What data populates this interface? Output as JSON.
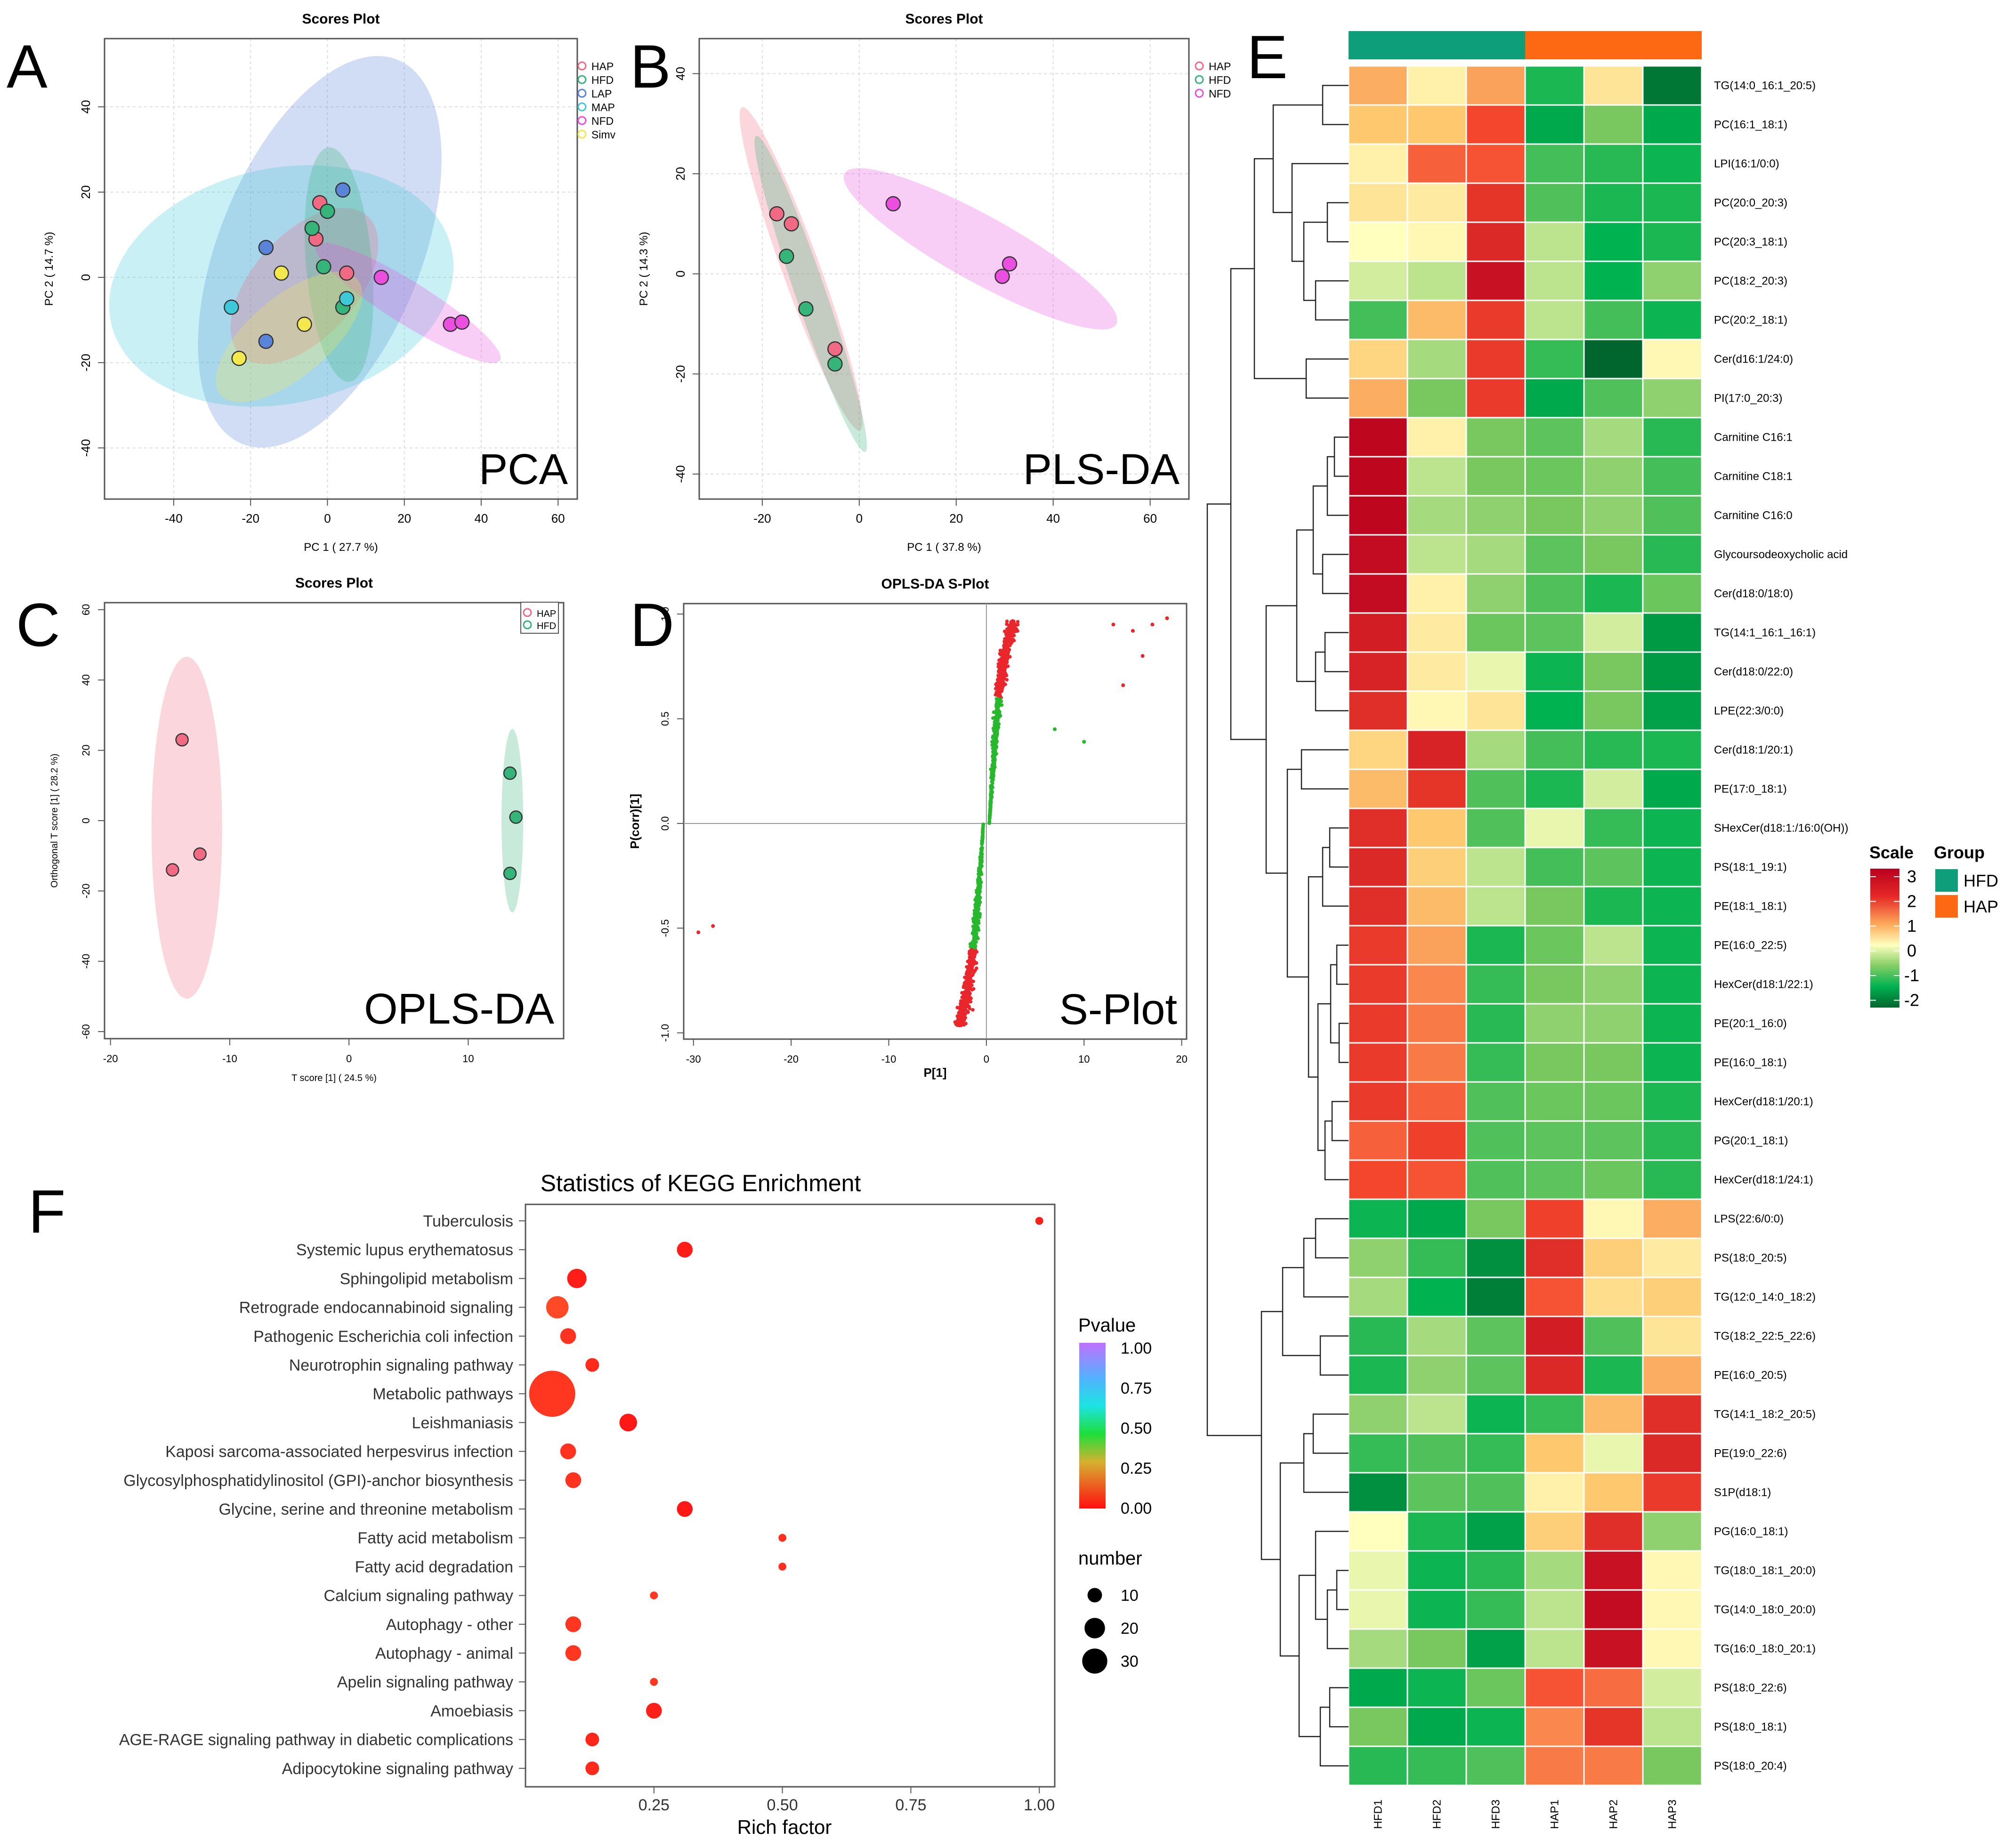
{
  "palette": {
    "HAP": "#f06a84",
    "HFD": "#35b57a",
    "LAP": "#5a84d8",
    "MAP": "#3ec9d8",
    "NFD": "#ea4fe0",
    "Simv": "#f3e84e"
  },
  "chart_data": [
    {
      "panel": "A",
      "type": "scatter",
      "title": "Scores Plot",
      "xlabel": "PC 1 ( 27.7 %)",
      "ylabel": "PC 2 ( 14.7 %)",
      "watermark": "PCA",
      "xlim": [
        -58,
        65
      ],
      "ylim": [
        -52,
        56
      ],
      "xticks": [
        "-40",
        "-20",
        "0",
        "20",
        "40",
        "60"
      ],
      "yticks": [
        "-40",
        "-20",
        "0",
        "20",
        "40"
      ],
      "legend": [
        "HAP",
        "HFD",
        "LAP",
        "MAP",
        "NFD",
        "Simv"
      ],
      "series": [
        {
          "name": "HAP",
          "points": [
            [
              -2,
              17.5
            ],
            [
              -3,
              9
            ],
            [
              5,
              1
            ]
          ]
        },
        {
          "name": "HFD",
          "points": [
            [
              -4,
              11.5
            ],
            [
              0,
              15.5
            ],
            [
              -1,
              2.5
            ],
            [
              4,
              -7
            ]
          ]
        },
        {
          "name": "LAP",
          "points": [
            [
              4,
              20.5
            ],
            [
              -16,
              7
            ],
            [
              -16,
              -15
            ]
          ]
        },
        {
          "name": "MAP",
          "points": [
            [
              -25,
              -7
            ],
            [
              5,
              -5
            ]
          ]
        },
        {
          "name": "NFD",
          "points": [
            [
              14,
              0
            ],
            [
              32,
              -11
            ],
            [
              35,
              -10.5
            ]
          ]
        },
        {
          "name": "Simv",
          "points": [
            [
              -12,
              1
            ],
            [
              -6,
              -11
            ],
            [
              -23,
              -19
            ]
          ]
        }
      ]
    },
    {
      "panel": "B",
      "type": "scatter",
      "title": "Scores Plot",
      "xlabel": "PC 1 ( 37.8 %)",
      "ylabel": "PC 2 ( 14.3 %)",
      "watermark": "PLS-DA",
      "xlim": [
        -33,
        68
      ],
      "ylim": [
        -45,
        47
      ],
      "xticks": [
        "-20",
        "0",
        "20",
        "40",
        "60"
      ],
      "yticks": [
        "-40",
        "-20",
        "0",
        "20",
        "40"
      ],
      "legend": [
        "HAP",
        "HFD",
        "NFD"
      ],
      "series": [
        {
          "name": "HAP",
          "points": [
            [
              -17,
              12
            ],
            [
              -14,
              10
            ],
            [
              -5,
              -15
            ]
          ]
        },
        {
          "name": "HFD",
          "points": [
            [
              -15,
              3.5
            ],
            [
              -11,
              -7
            ],
            [
              -5,
              -18
            ]
          ]
        },
        {
          "name": "NFD",
          "points": [
            [
              7,
              14
            ],
            [
              31,
              2
            ],
            [
              29.5,
              -0.5
            ]
          ]
        }
      ]
    },
    {
      "panel": "C",
      "type": "scatter",
      "title": "Scores Plot",
      "xlabel": "T score [1] ( 24.5 %)",
      "ylabel": "Orthogonal T score [1] ( 28.2 %)",
      "watermark": "OPLS-DA",
      "xlim": [
        -20.5,
        18
      ],
      "ylim": [
        -62,
        62
      ],
      "xticks": [
        "-20",
        "-10",
        "0",
        "10"
      ],
      "yticks": [
        "-60",
        "-40",
        "-20",
        "0",
        "20",
        "40",
        "60"
      ],
      "legend": [
        "HAP",
        "HFD"
      ],
      "series": [
        {
          "name": "HAP",
          "points": [
            [
              -14,
              23
            ],
            [
              -12.5,
              -9.5
            ],
            [
              -14.8,
              -14
            ]
          ]
        },
        {
          "name": "HFD",
          "points": [
            [
              13.5,
              13.5
            ],
            [
              14,
              1
            ],
            [
              13.5,
              -15
            ]
          ]
        }
      ]
    },
    {
      "panel": "D",
      "type": "scatter",
      "title": "OPLS-DA S-Plot",
      "xlabel": "P[1]",
      "ylabel": "P(corr)[1]",
      "watermark": "S-Plot",
      "xlim": [
        -31,
        20.5
      ],
      "ylim": [
        -1.03,
        1.05
      ],
      "xticks": [
        "-30",
        "-20",
        "-10",
        "0",
        "10",
        "20"
      ],
      "yticks": [
        "-1.0",
        "-0.5",
        "0.0",
        "0.5",
        "1.0"
      ],
      "note": "approx. 1400 dense points forming an S-curve: red |P(corr)| > 0.6, green otherwise"
    },
    {
      "panel": "E",
      "type": "heatmap",
      "columns": [
        "HFD1",
        "HFD2",
        "HFD3",
        "HAP1",
        "HAP2",
        "HAP3"
      ],
      "groups": [
        "HFD",
        "HFD",
        "HFD",
        "HAP",
        "HAP",
        "HAP"
      ],
      "legend_scale_title": "Scale",
      "legend_group_title": "Group",
      "scale_ticks": [
        "3",
        "2",
        "1",
        "0",
        "-1",
        "-2"
      ],
      "group_legend": [
        {
          "name": "HFD",
          "color": "#0e9e79"
        },
        {
          "name": "HAP",
          "color": "#fd6912"
        }
      ],
      "rows": [
        "TG(14:0_16:1_20:5)",
        "PC(16:1_18:1)",
        "LPI(16:1/0:0)",
        "PC(20:0_20:3)",
        "PC(20:3_18:1)",
        "PC(18:2_20:3)",
        "PC(20:2_18:1)",
        "Cer(d16:1/24:0)",
        "PI(17:0_20:3)",
        "Carnitine C16:1",
        "Carnitine C18:1",
        "Carnitine C16:0",
        "Glycoursodeoxycholic acid",
        "Cer(d18:0/18:0)",
        "TG(14:1_16:1_16:1)",
        "Cer(d18:0/22:0)",
        "LPE(22:3/0:0)",
        "Cer(d18:1/20:1)",
        "PE(17:0_18:1)",
        "SHexCer(d18:1:/16:0(OH))",
        "PS(18:1_19:1)",
        "PE(18:1_18:1)",
        "PE(16:0_22:5)",
        "HexCer(d18:1/22:1)",
        "PE(20:1_16:0)",
        "PE(16:0_18:1)",
        "HexCer(d18:1/20:1)",
        "PG(20:1_18:1)",
        "HexCer(d18:1/24:1)",
        "LPS(22:6/0:0)",
        "PS(18:0_20:5)",
        "TG(12:0_14:0_18:2)",
        "TG(18:2_22:5_22:6)",
        "PE(16:0_20:5)",
        "TG(14:1_18:2_20:5)",
        "PE(19:0_22:6)",
        "S1P(d18:1)",
        "PG(16:0_18:1)",
        "TG(18:0_18:1_20:0)",
        "TG(14:0_18:0_20:0)",
        "TG(16:0_18:0_20:1)",
        "PS(18:0_22:6)",
        "PS(18:0_18:1)",
        "PS(18:0_20:4)"
      ],
      "values": [
        [
          1,
          0.2,
          1.1,
          -1.3,
          0.4,
          -2.2
        ],
        [
          0.8,
          0.8,
          1.8,
          -1.6,
          -0.6,
          -1.6
        ],
        [
          0.2,
          1.6,
          1.7,
          -1.0,
          -1.2,
          -1.4
        ],
        [
          0.4,
          0.3,
          2.1,
          -0.9,
          -1.3,
          -1.3
        ],
        [
          0,
          0.1,
          2.3,
          -0.3,
          -1.5,
          -1.3
        ],
        [
          -0.2,
          -0.3,
          2.7,
          -0.3,
          -1.5,
          -0.5
        ],
        [
          -1.0,
          0.9,
          2.0,
          -0.3,
          -1.0,
          -1.4
        ],
        [
          0.6,
          -0.4,
          2.0,
          -1.1,
          -2.4,
          0.1
        ],
        [
          1.0,
          -0.6,
          2.0,
          -1.6,
          -0.9,
          -0.5
        ],
        [
          2.9,
          0.2,
          -0.6,
          -0.8,
          -0.4,
          -1.2
        ],
        [
          2.9,
          -0.3,
          -0.6,
          -0.7,
          -0.5,
          -1.0
        ],
        [
          2.9,
          -0.4,
          -0.5,
          -0.6,
          -0.5,
          -0.9
        ],
        [
          2.8,
          -0.3,
          -0.4,
          -0.8,
          -0.6,
          -1.2
        ],
        [
          2.8,
          0.2,
          -0.5,
          -0.9,
          -1.3,
          -0.7
        ],
        [
          2.5,
          0.3,
          -0.7,
          -0.8,
          -0.2,
          -1.8
        ],
        [
          2.4,
          0.3,
          -0.1,
          -1.4,
          -0.6,
          -1.8
        ],
        [
          2.2,
          0.1,
          0.4,
          -1.5,
          -0.6,
          -1.7
        ],
        [
          0.6,
          2.4,
          -0.4,
          -1.0,
          -1.2,
          -1.3
        ],
        [
          0.9,
          2.1,
          -0.9,
          -1.3,
          -0.2,
          -1.6
        ],
        [
          2.2,
          0.8,
          -0.9,
          -0.1,
          -1.1,
          -1.4
        ],
        [
          2.3,
          0.7,
          -0.3,
          -1.0,
          -0.8,
          -1.4
        ],
        [
          2.2,
          0.9,
          -0.3,
          -0.6,
          -1.3,
          -1.4
        ],
        [
          2.0,
          1.1,
          -1.3,
          -0.7,
          -0.3,
          -1.4
        ],
        [
          2.0,
          1.3,
          -1.1,
          -0.6,
          -0.5,
          -1.4
        ],
        [
          2.0,
          1.4,
          -1.2,
          -0.5,
          -0.5,
          -1.4
        ],
        [
          2.0,
          1.4,
          -1.1,
          -0.6,
          -0.6,
          -1.4
        ],
        [
          2.0,
          1.6,
          -0.9,
          -0.7,
          -0.7,
          -1.3
        ],
        [
          1.6,
          1.9,
          -0.9,
          -0.8,
          -0.8,
          -1.2
        ],
        [
          1.8,
          1.7,
          -0.9,
          -0.8,
          -0.7,
          -1.2
        ],
        [
          -1.4,
          -1.6,
          -0.6,
          1.9,
          0.1,
          1.0
        ],
        [
          -0.5,
          -1.1,
          -1.9,
          2.2,
          0.7,
          0.3
        ],
        [
          -0.4,
          -1.5,
          -2.1,
          1.7,
          0.5,
          0.7
        ],
        [
          -1.2,
          -0.4,
          -0.8,
          2.5,
          -0.9,
          0.4
        ],
        [
          -1.3,
          -0.5,
          -0.8,
          2.3,
          -1.3,
          1.0
        ],
        [
          -0.5,
          -0.3,
          -1.4,
          -1.1,
          0.9,
          2.2
        ],
        [
          -1.1,
          -0.9,
          -1.1,
          0.8,
          -0.1,
          2.3
        ],
        [
          -1.9,
          -0.8,
          -0.9,
          0.2,
          0.8,
          2.0
        ],
        [
          0,
          -1.3,
          -1.7,
          0.7,
          2.2,
          -0.5
        ],
        [
          -0.1,
          -1.4,
          -1.2,
          -0.4,
          2.7,
          0.1
        ],
        [
          -0.1,
          -1.4,
          -1.1,
          -0.3,
          2.8,
          0.1
        ],
        [
          -0.4,
          -0.6,
          -1.7,
          -0.3,
          2.7,
          0.1
        ],
        [
          -1.6,
          -1.4,
          -0.7,
          1.7,
          1.5,
          -0.2
        ],
        [
          -0.6,
          -1.6,
          -1.4,
          1.3,
          2.1,
          -0.3
        ],
        [
          -1.2,
          -1.1,
          -0.9,
          1.4,
          1.4,
          -0.6
        ]
      ]
    },
    {
      "panel": "F",
      "type": "scatter",
      "title": "Statistics of KEGG Enrichment",
      "xlabel": "Rich factor",
      "xticks": [
        "0.25",
        "0.50",
        "0.75",
        "1.00"
      ],
      "xlim": [
        0,
        1.03
      ],
      "legend_color_title": "Pvalue",
      "color_ticks": [
        "1.00",
        "0.75",
        "0.50",
        "0.25",
        "0.00"
      ],
      "legend_size_title": "number",
      "size_ticks": [
        "10",
        "20",
        "30"
      ],
      "categories": [
        "Tuberculosis",
        "Systemic lupus erythematosus",
        "Sphingolipid metabolism",
        "Retrograde endocannabinoid signaling",
        "Pathogenic Escherichia coli infection",
        "Neurotrophin signaling pathway",
        "Metabolic pathways",
        "Leishmaniasis",
        "Kaposi sarcoma-associated herpesvirus infection",
        "Glycosylphosphatidylinositol (GPI)-anchor biosynthesis",
        "Glycine, serine and threonine metabolism",
        "Fatty acid metabolism",
        "Fatty acid degradation",
        "Calcium signaling pathway",
        "Autophagy - other",
        "Autophagy - animal",
        "Apelin signaling pathway",
        "Amoebiasis",
        "AGE-RAGE signaling pathway in diabetic complications",
        "Adipocytokine signaling pathway"
      ],
      "rich_factor": [
        1.0,
        0.31,
        0.1,
        0.062,
        0.083,
        0.13,
        0.052,
        0.2,
        0.083,
        0.093,
        0.31,
        0.5,
        0.5,
        0.25,
        0.093,
        0.093,
        0.25,
        0.25,
        0.13,
        0.13
      ],
      "number": [
        1,
        4,
        6,
        8,
        4,
        3,
        34,
        5,
        4,
        4,
        4,
        1,
        1,
        1,
        4,
        4,
        1,
        4,
        3,
        3
      ],
      "pvalue": [
        0.03,
        0.02,
        0.02,
        0.12,
        0.07,
        0.05,
        0.08,
        0.01,
        0.07,
        0.07,
        0.01,
        0.06,
        0.06,
        0.08,
        0.08,
        0.08,
        0.08,
        0.03,
        0.04,
        0.05
      ]
    }
  ]
}
